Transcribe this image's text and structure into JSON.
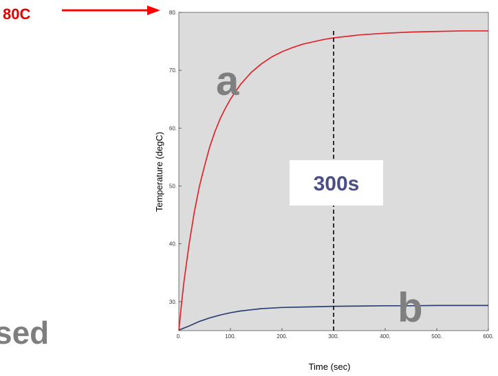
{
  "colors": {
    "plot_background": "#dcdcdc",
    "page_background": "#ffffff",
    "series_a": "#e0222a",
    "series_b": "#2b3f73",
    "arrow": "#ff0000",
    "callout_text": "#e00000",
    "letters": "#7f7f7f",
    "box_text": "#4b4e86",
    "marker_line": "#000000"
  },
  "annotations": {
    "arrow_label": "80C",
    "marker_label": "300s",
    "curve_a_label": "a",
    "curve_b_label": "b",
    "cropped_text": "sed"
  },
  "chart_data": {
    "type": "line",
    "xlabel": "Time (sec)",
    "ylabel": "Temperature (degC)",
    "xlim": [
      0,
      600
    ],
    "ylim": [
      25,
      80
    ],
    "x_ticks": [
      0,
      100,
      200,
      300,
      400,
      500,
      600
    ],
    "x_tick_labels": [
      "0.",
      "100.",
      "200.",
      "300.",
      "400.",
      "500.",
      "600."
    ],
    "y_ticks": [
      30,
      40,
      50,
      60,
      70,
      80
    ],
    "y_tick_labels": [
      "30.",
      "40.",
      "50.",
      "60.",
      "70.",
      "80."
    ],
    "vertical_marker_x": 300,
    "grid": false,
    "series": [
      {
        "x": [
          0,
          5,
          10,
          20,
          30,
          40,
          50,
          60,
          70,
          80,
          90,
          100,
          120,
          140,
          160,
          180,
          200,
          220,
          240,
          260,
          280,
          300,
          350,
          400,
          450,
          500,
          550,
          600
        ],
        "y": [
          25.0,
          29.5,
          33.5,
          40.0,
          45.5,
          50.0,
          53.5,
          56.8,
          59.4,
          61.6,
          63.4,
          65.0,
          67.6,
          69.6,
          71.1,
          72.3,
          73.2,
          73.9,
          74.5,
          74.9,
          75.3,
          75.6,
          76.1,
          76.4,
          76.6,
          76.7,
          76.8,
          76.8
        ]
      },
      {
        "x": [
          0,
          20,
          40,
          60,
          80,
          100,
          120,
          140,
          160,
          180,
          200,
          250,
          300,
          350,
          400,
          450,
          500,
          550,
          600
        ],
        "y": [
          25.1,
          25.8,
          26.6,
          27.2,
          27.7,
          28.1,
          28.4,
          28.6,
          28.8,
          28.9,
          29.0,
          29.1,
          29.2,
          29.25,
          29.3,
          29.3,
          29.35,
          29.35,
          29.35
        ]
      }
    ]
  }
}
